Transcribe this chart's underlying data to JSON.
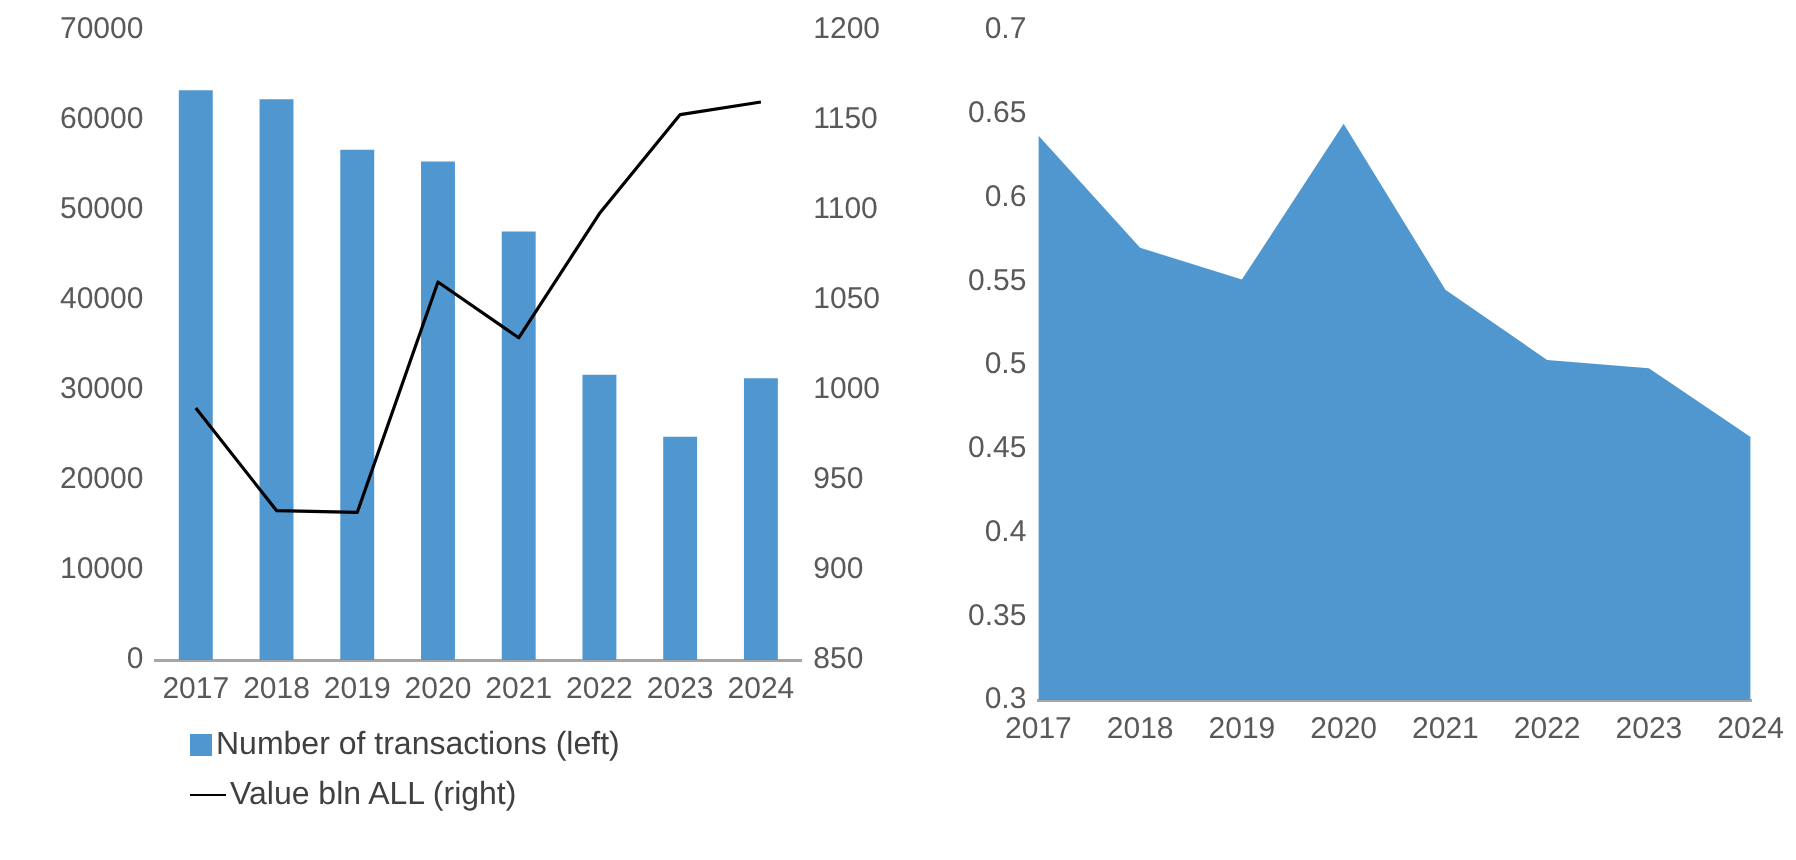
{
  "chart_data": [
    {
      "type": "bar",
      "categories": [
        "2017",
        "2018",
        "2019",
        "2020",
        "2021",
        "2022",
        "2023",
        "2024"
      ],
      "series": [
        {
          "name": "Number of transactions (left)",
          "type": "bar",
          "color": "#5097d0",
          "values": [
            63300,
            62300,
            56700,
            55400,
            47600,
            31700,
            24800,
            31300
          ]
        },
        {
          "name": "Value bln ALL (right)",
          "type": "line",
          "axis": "y2",
          "color": "#000000",
          "values": [
            990,
            933,
            932,
            1060,
            1029,
            1098,
            1153,
            1160
          ]
        }
      ],
      "ylim": [
        0,
        70000
      ],
      "yticks": [
        0,
        10000,
        20000,
        30000,
        40000,
        50000,
        60000,
        70000
      ],
      "y2lim": [
        850,
        1200
      ],
      "y2ticks": [
        850,
        900,
        950,
        1000,
        1050,
        1100,
        1150,
        1200
      ],
      "grid": false,
      "legend": "bottom left"
    },
    {
      "type": "area",
      "categories": [
        "2017",
        "2018",
        "2019",
        "2020",
        "2021",
        "2022",
        "2023",
        "2024"
      ],
      "color": "#5097d0",
      "values": [
        0.637,
        0.57,
        0.551,
        0.644,
        0.545,
        0.503,
        0.498,
        0.457
      ],
      "ylim": [
        0.3,
        0.7
      ],
      "yticks": [
        0.3,
        0.35,
        0.4,
        0.45,
        0.5,
        0.55,
        0.6,
        0.65,
        0.7
      ],
      "grid": false
    }
  ]
}
